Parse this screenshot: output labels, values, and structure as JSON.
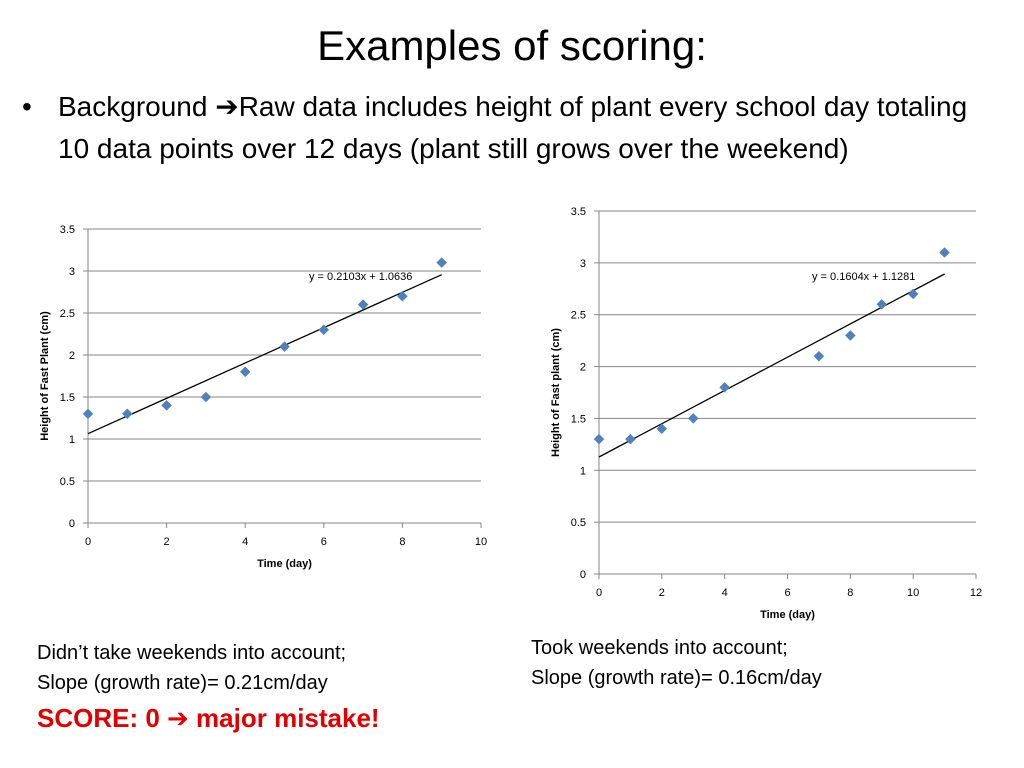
{
  "slide": {
    "title": "Examples of scoring:",
    "bullet_marker": "•",
    "bullet_lead": "Background ",
    "bullet_arrow": "➔",
    "bullet_rest": "Raw data includes height of plant every school day totaling 10 data points over 12 days (plant still grows over the weekend)"
  },
  "captions": {
    "left_line1": "Didn’t take weekends into account;",
    "left_line2": "Slope (growth rate)= 0.21cm/day",
    "left_score_before": "SCORE: 0 ",
    "left_score_arrow": "➔",
    "left_score_after": " major mistake!",
    "right_line1": "Took weekends into account;",
    "right_line2": "Slope (growth rate)= 0.16cm/day"
  },
  "colors": {
    "marker": "#4f81bd",
    "gridline": "#868686",
    "trendline": "#000000",
    "score_text": "#e00000"
  },
  "chart_data": [
    {
      "type": "scatter",
      "xlabel": "Time (day)",
      "ylabel": "Height of Fast Plant (cm)",
      "xlim": [
        0,
        10
      ],
      "ylim": [
        0,
        3.5
      ],
      "xticks": [
        0,
        2,
        4,
        6,
        8,
        10
      ],
      "yticks": [
        0,
        0.5,
        1,
        1.5,
        2,
        2.5,
        3,
        3.5
      ],
      "grid": "horizontal",
      "x": [
        0,
        1,
        2,
        3,
        4,
        5,
        6,
        7,
        8,
        9
      ],
      "y": [
        1.3,
        1.3,
        1.4,
        1.5,
        1.8,
        2.1,
        2.3,
        2.6,
        2.7,
        3.1
      ],
      "trendline": {
        "slope": 0.2103,
        "intercept": 1.0636,
        "x_range": [
          0,
          9
        ],
        "label": "y = 0.2103x + 1.0636"
      }
    },
    {
      "type": "scatter",
      "xlabel": "Time (day)",
      "ylabel": "Height of Fast plant (cm)",
      "xlim": [
        0,
        12
      ],
      "ylim": [
        0,
        3.5
      ],
      "xticks": [
        0,
        2,
        4,
        6,
        8,
        10,
        12
      ],
      "yticks": [
        0,
        0.5,
        1,
        1.5,
        2,
        2.5,
        3,
        3.5
      ],
      "grid": "horizontal",
      "x": [
        0,
        1,
        2,
        3,
        4,
        7,
        8,
        9,
        10,
        11
      ],
      "y": [
        1.3,
        1.3,
        1.4,
        1.5,
        1.8,
        2.1,
        2.3,
        2.6,
        2.7,
        3.1
      ],
      "trendline": {
        "slope": 0.1604,
        "intercept": 1.1281,
        "x_range": [
          0,
          11
        ],
        "label": "y = 0.1604x + 1.1281"
      }
    }
  ]
}
